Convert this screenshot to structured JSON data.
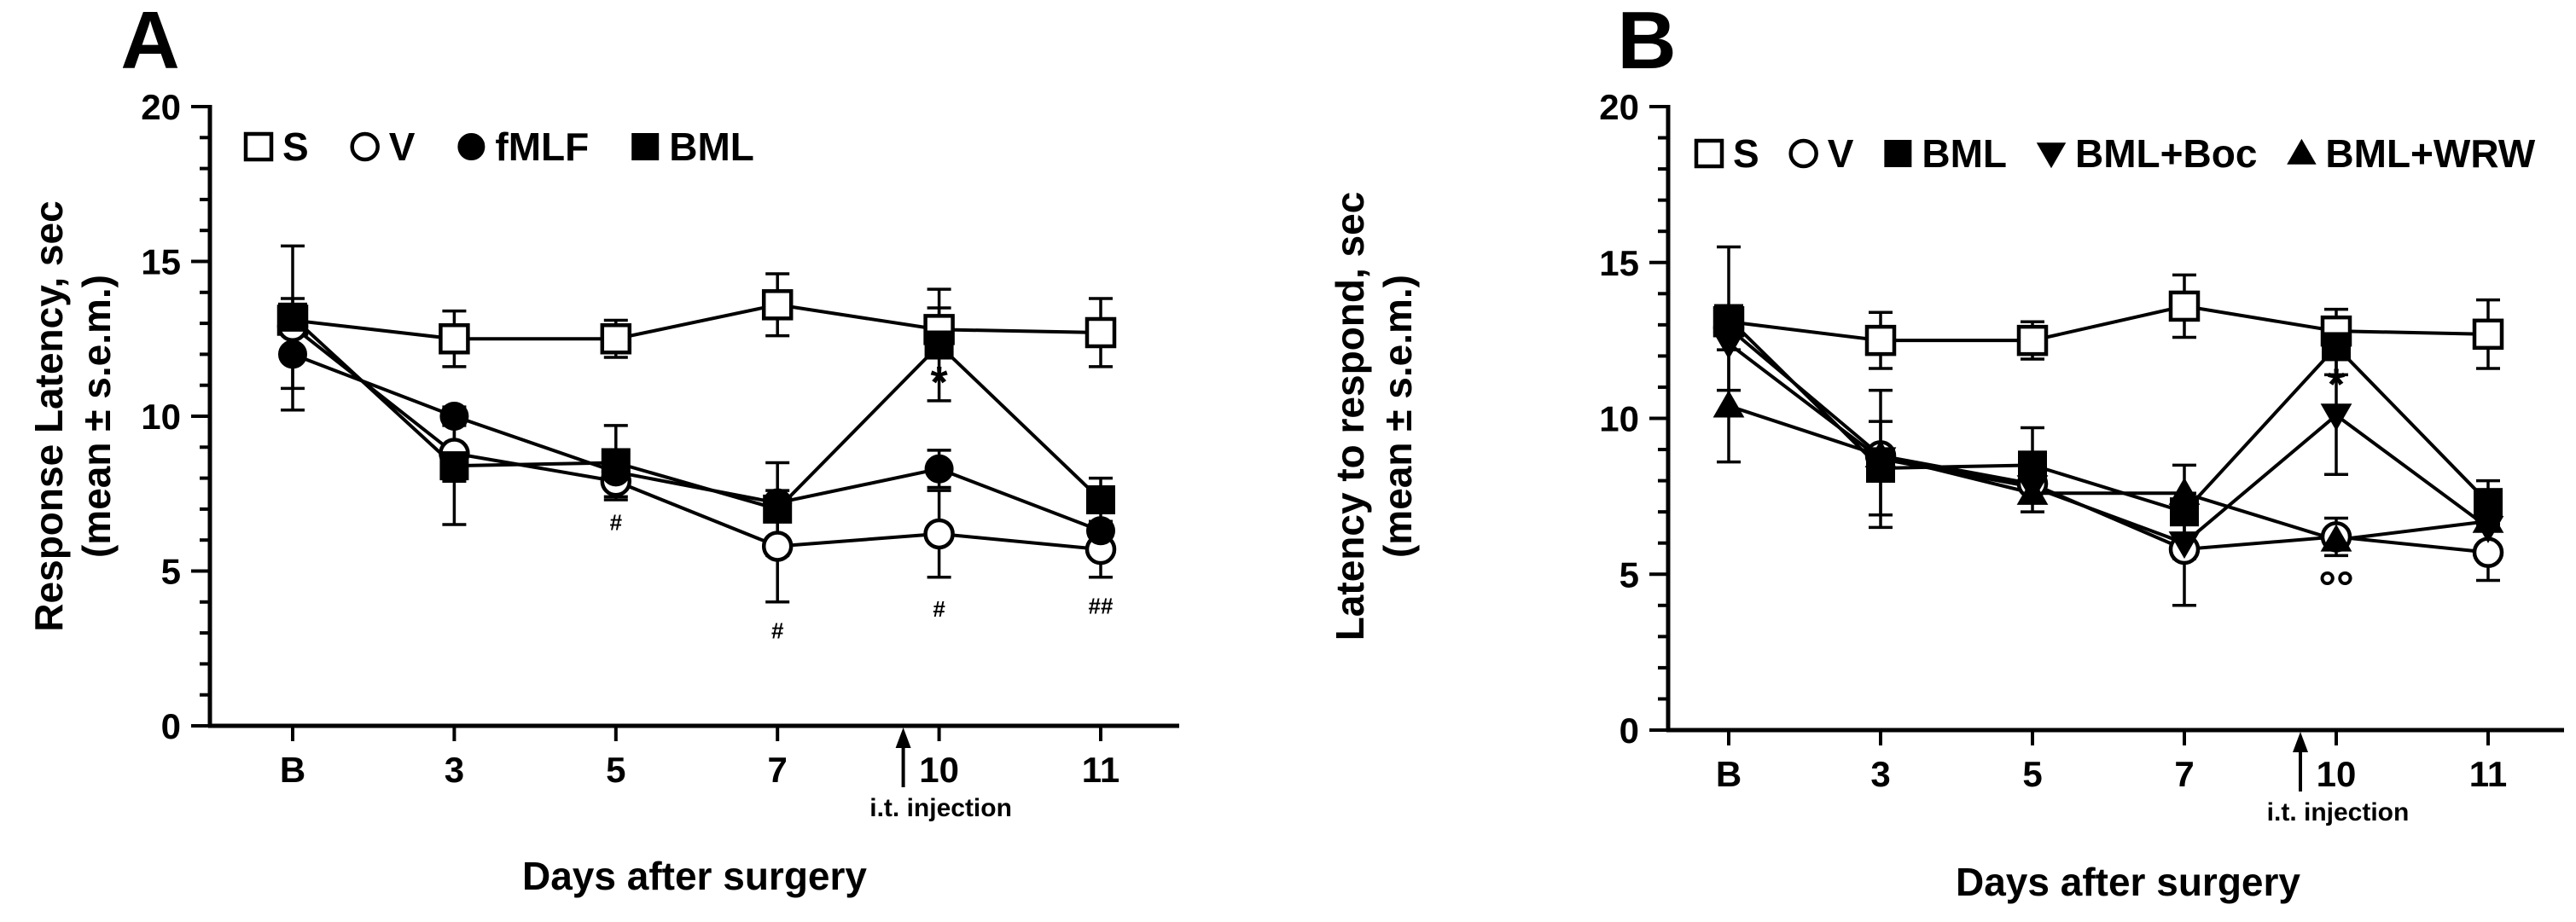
{
  "chart_data": [
    {
      "type": "line",
      "panel_label": "A",
      "categories": [
        "B",
        "3",
        "5",
        "7",
        "10",
        "11"
      ],
      "xlabel": "Days after surgery",
      "ylabel_line1": "Response Latency, sec",
      "ylabel_line2": "(mean ± s.e.m.)",
      "ylim": [
        0,
        20
      ],
      "yticks": [
        "0",
        "5",
        "10",
        "15",
        "20"
      ],
      "arrow_annotation": {
        "text": "i.t. injection",
        "x_category": "10"
      },
      "series": [
        {
          "name": "S",
          "marker": "square-open",
          "values": [
            13.1,
            12.5,
            12.5,
            13.6,
            12.8,
            12.7
          ],
          "err": [
            0,
            0.9,
            0.6,
            1.0,
            0.7,
            1.1
          ]
        },
        {
          "name": "V",
          "marker": "circle-open",
          "values": [
            12.9,
            8.8,
            7.9,
            5.8,
            6.2,
            5.7
          ],
          "err": [
            0,
            0.9,
            0.5,
            1.8,
            1.4,
            0.9
          ]
        },
        {
          "name": "fMLF",
          "marker": "circle-filled",
          "values": [
            12.0,
            10.0,
            8.2,
            7.2,
            8.3,
            6.3
          ],
          "err": [
            1.8,
            0,
            0,
            0,
            0.6,
            0
          ]
        },
        {
          "name": "BML",
          "marker": "square-filled",
          "values": [
            13.2,
            8.4,
            8.5,
            7.0,
            12.3,
            7.3
          ],
          "err": [
            2.3,
            1.9,
            1.2,
            1.5,
            1.8,
            0.7
          ]
        }
      ],
      "annotations": [
        {
          "text": "*",
          "x_category": "10",
          "y": 11.1,
          "size": "large"
        },
        {
          "text": "#",
          "x_category": "5",
          "y": 6.6,
          "size": "small"
        },
        {
          "text": "#",
          "x_category": "7",
          "y": 3.1,
          "size": "small"
        },
        {
          "text": "#",
          "x_category": "10",
          "y": 3.8,
          "size": "small"
        },
        {
          "text": "##",
          "x_category": "11",
          "y": 3.9,
          "size": "small"
        }
      ]
    },
    {
      "type": "line",
      "panel_label": "B",
      "categories": [
        "B",
        "3",
        "5",
        "7",
        "10",
        "11"
      ],
      "xlabel": "Days after surgery",
      "ylabel_line1": "Latency to respond, sec",
      "ylabel_line2": "(mean ± s.e.m.)",
      "ylim": [
        0,
        20
      ],
      "yticks": [
        "0",
        "5",
        "10",
        "15",
        "20"
      ],
      "arrow_annotation": {
        "text": "i.t. injection",
        "x_category": "10"
      },
      "series": [
        {
          "name": "S",
          "marker": "square-open",
          "values": [
            13.1,
            12.5,
            12.5,
            13.6,
            12.8,
            12.7
          ],
          "err": [
            0,
            0.9,
            0.6,
            1.0,
            0.7,
            1.1
          ]
        },
        {
          "name": "V",
          "marker": "circle-open",
          "values": [
            12.9,
            8.8,
            7.9,
            5.8,
            6.2,
            5.7
          ],
          "err": [
            0,
            0,
            0,
            1.8,
            0.6,
            0.9
          ]
        },
        {
          "name": "BML",
          "marker": "square-filled",
          "values": [
            13.2,
            8.4,
            8.5,
            7.0,
            12.3,
            7.3
          ],
          "err": [
            2.3,
            1.5,
            1.2,
            1.5,
            0.9,
            0.7
          ]
        },
        {
          "name": "BML+Boc",
          "marker": "triangle-down-filled",
          "values": [
            12.4,
            8.7,
            7.8,
            6.0,
            10.1,
            6.5
          ],
          "err": [
            0,
            2.2,
            0,
            0,
            1.9,
            0
          ]
        },
        {
          "name": "BML+WRW",
          "marker": "triangle-up-filled",
          "values": [
            10.4,
            8.8,
            7.6,
            7.6,
            6.1,
            6.7
          ],
          "err": [
            1.8,
            0,
            0.6,
            0,
            0,
            0
          ]
        }
      ],
      "annotations": [
        {
          "text": "*",
          "x_category": "10",
          "y": 11.1,
          "size": "large"
        },
        {
          "text": "°°",
          "x_category": "10",
          "y": 4.6,
          "size": "large"
        }
      ]
    }
  ]
}
